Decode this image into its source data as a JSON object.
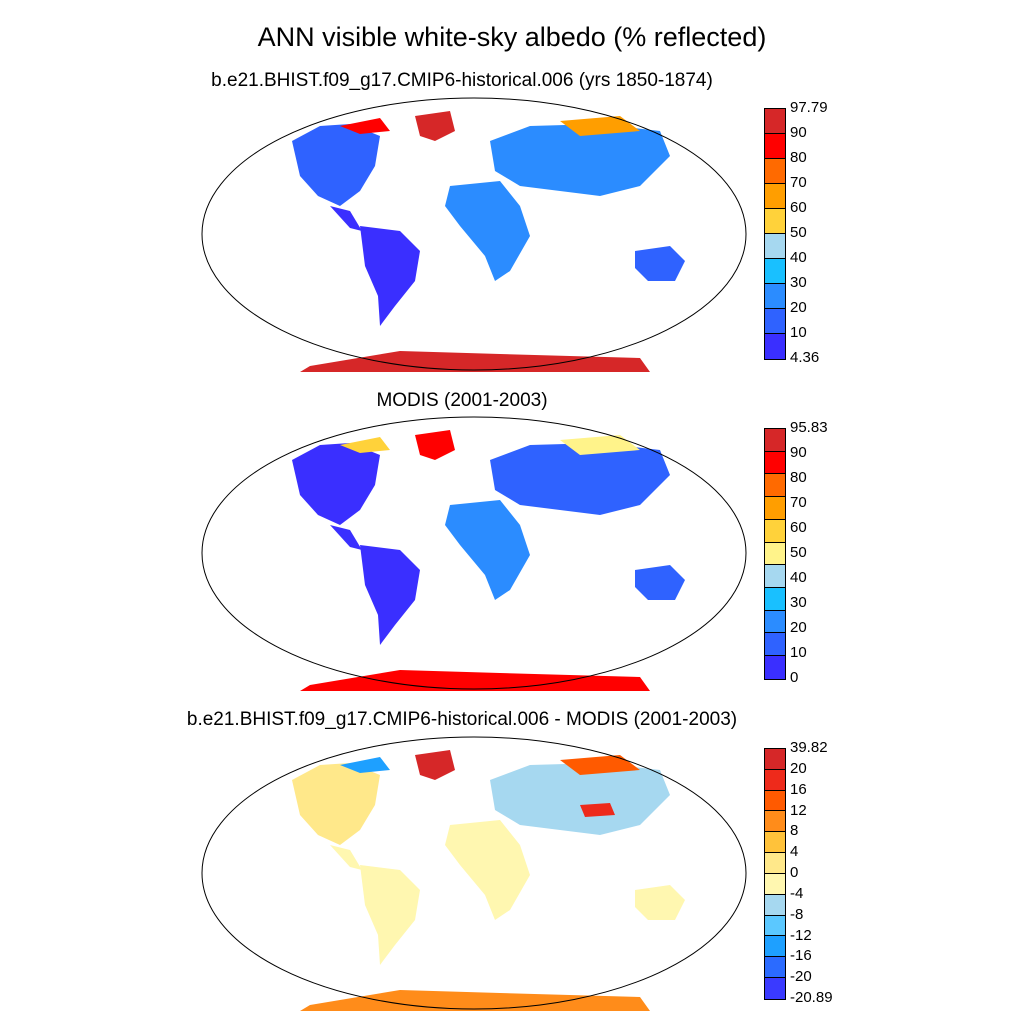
{
  "main_title": "ANN visible white-sky albedo (% reflected)",
  "panels": [
    {
      "title": "b.e21.BHIST.f09_g17.CMIP6-historical.006 (yrs 1850-1874)",
      "colorbar": {
        "labels": [
          "97.79",
          "90",
          "80",
          "70",
          "60",
          "50",
          "40",
          "30",
          "20",
          "10",
          "4.36"
        ],
        "colors": [
          "#d62728",
          "#ff0000",
          "#ff6a00",
          "#ff9e00",
          "#ffd23a",
          "#a6d8f0",
          "#19c0ff",
          "#2b8cff",
          "#2f62ff",
          "#3a2fff"
        ]
      }
    },
    {
      "title": "MODIS (2001-2003)",
      "colorbar": {
        "labels": [
          "95.83",
          "90",
          "80",
          "70",
          "60",
          "50",
          "40",
          "30",
          "20",
          "10",
          "0"
        ],
        "colors": [
          "#d62728",
          "#ff0000",
          "#ff6a00",
          "#ff9e00",
          "#ffd23a",
          "#fff38a",
          "#a6d8f0",
          "#19c0ff",
          "#2b8cff",
          "#2f62ff",
          "#3a2fff"
        ]
      }
    },
    {
      "title": "b.e21.BHIST.f09_g17.CMIP6-historical.006 - MODIS (2001-2003)",
      "colorbar": {
        "labels": [
          "39.82",
          "20",
          "16",
          "12",
          "8",
          "4",
          "0",
          "-4",
          "-8",
          "-12",
          "-16",
          "-20",
          "-20.89"
        ],
        "colors": [
          "#d62728",
          "#ee2a1b",
          "#ff5a00",
          "#ff8c1a",
          "#ffc23a",
          "#ffe88a",
          "#fff7b0",
          "#a6d8f0",
          "#5bc8ff",
          "#1ea0ff",
          "#2b6bff",
          "#3a3aff"
        ]
      }
    }
  ]
}
